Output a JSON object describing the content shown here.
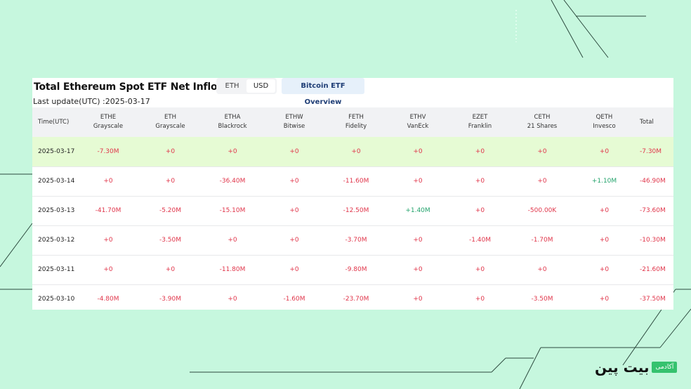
{
  "title": "Total Ethereum Spot ETF Net Inflow USD",
  "currency_toggle": {
    "options": [
      "ETH",
      "USD"
    ],
    "selected": "USD"
  },
  "overview_button": "Bitcoin ETF Overview",
  "last_update": "Last update(UTC) :2025-03-17",
  "columns": [
    {
      "ticker": "Time(UTC)",
      "issuer": ""
    },
    {
      "ticker": "ETHE",
      "issuer": "Grayscale"
    },
    {
      "ticker": "ETH",
      "issuer": "Grayscale"
    },
    {
      "ticker": "ETHA",
      "issuer": "Blackrock"
    },
    {
      "ticker": "ETHW",
      "issuer": "Bitwise"
    },
    {
      "ticker": "FETH",
      "issuer": "Fidelity"
    },
    {
      "ticker": "ETHV",
      "issuer": "VanEck"
    },
    {
      "ticker": "EZET",
      "issuer": "Franklin"
    },
    {
      "ticker": "CETH",
      "issuer": "21 Shares"
    },
    {
      "ticker": "QETH",
      "issuer": "Invesco"
    },
    {
      "ticker": "Total",
      "issuer": ""
    }
  ],
  "rows": [
    [
      "2025-03-17",
      "-7.30M",
      "+0",
      "+0",
      "+0",
      "+0",
      "+0",
      "+0",
      "+0",
      "+0",
      "-7.30M"
    ],
    [
      "2025-03-14",
      "+0",
      "+0",
      "-36.40M",
      "+0",
      "-11.60M",
      "+0",
      "+0",
      "+0",
      "+1.10M",
      "-46.90M"
    ],
    [
      "2025-03-13",
      "-41.70M",
      "-5.20M",
      "-15.10M",
      "+0",
      "-12.50M",
      "+1.40M",
      "+0",
      "-500.00K",
      "+0",
      "-73.60M"
    ],
    [
      "2025-03-12",
      "+0",
      "-3.50M",
      "+0",
      "+0",
      "-3.70M",
      "+0",
      "-1.40M",
      "-1.70M",
      "+0",
      "-10.30M"
    ],
    [
      "2025-03-11",
      "+0",
      "+0",
      "-11.80M",
      "+0",
      "-9.80M",
      "+0",
      "+0",
      "+0",
      "+0",
      "-21.60M"
    ],
    [
      "2025-03-10",
      "-4.80M",
      "-3.90M",
      "+0",
      "-1.60M",
      "-23.70M",
      "+0",
      "+0",
      "-3.50M",
      "+0",
      "-37.50M"
    ]
  ],
  "colors": {
    "negative": "#e0354a",
    "positive": "#23a36c",
    "highlight_row": "#e6fbd4",
    "background": "#c6f7de"
  },
  "logo": {
    "word": "بیت پین",
    "badge": "آکادمی"
  }
}
